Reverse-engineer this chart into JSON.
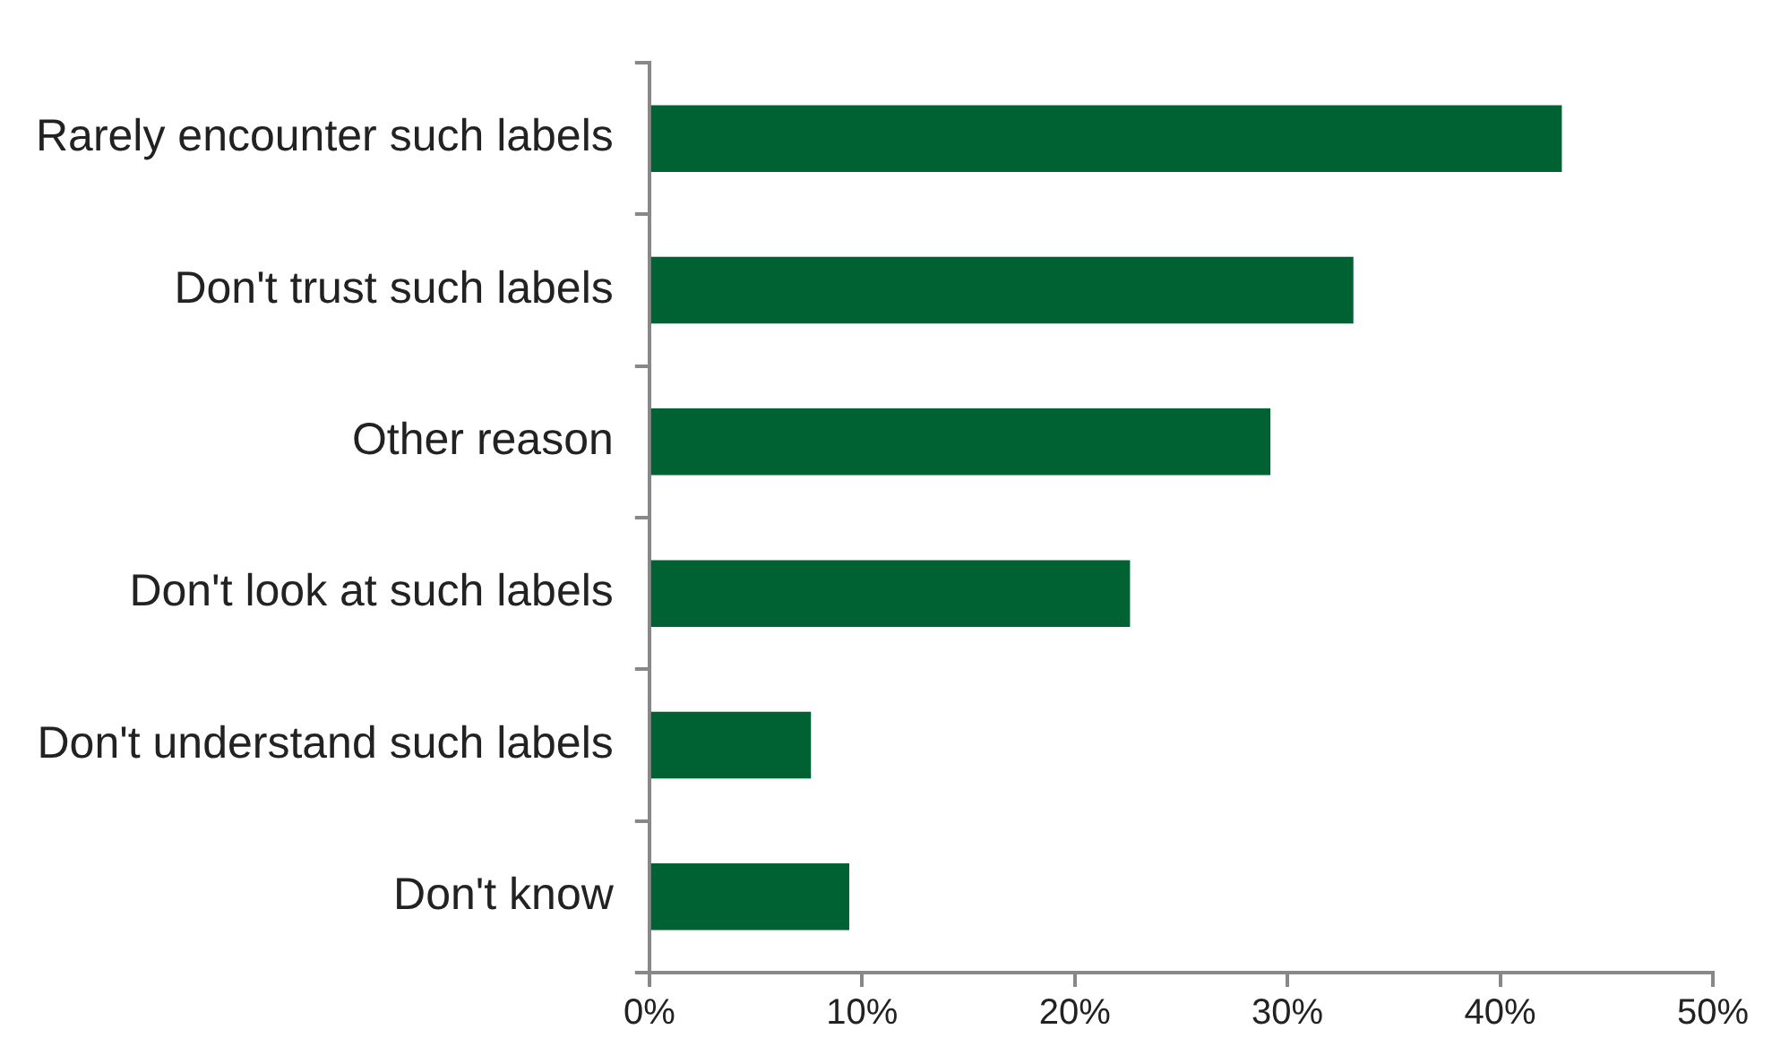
{
  "chart_data": {
    "type": "bar",
    "orientation": "horizontal",
    "categories": [
      "Rarely encounter such labels",
      "Don't trust such labels",
      "Other reason",
      "Don't look at such labels",
      "Don't understand such labels",
      "Don't know"
    ],
    "values": [
      42.9,
      33.1,
      29.2,
      22.6,
      7.6,
      9.4
    ],
    "color": "#006233",
    "xlim": [
      0,
      50
    ],
    "xticks": [
      {
        "value": 0,
        "label": "0%"
      },
      {
        "value": 10,
        "label": "10%"
      },
      {
        "value": 20,
        "label": "20%"
      },
      {
        "value": 30,
        "label": "30%"
      },
      {
        "value": 40,
        "label": "40%"
      },
      {
        "value": 50,
        "label": "50%"
      }
    ],
    "grid": false,
    "legend": false
  }
}
